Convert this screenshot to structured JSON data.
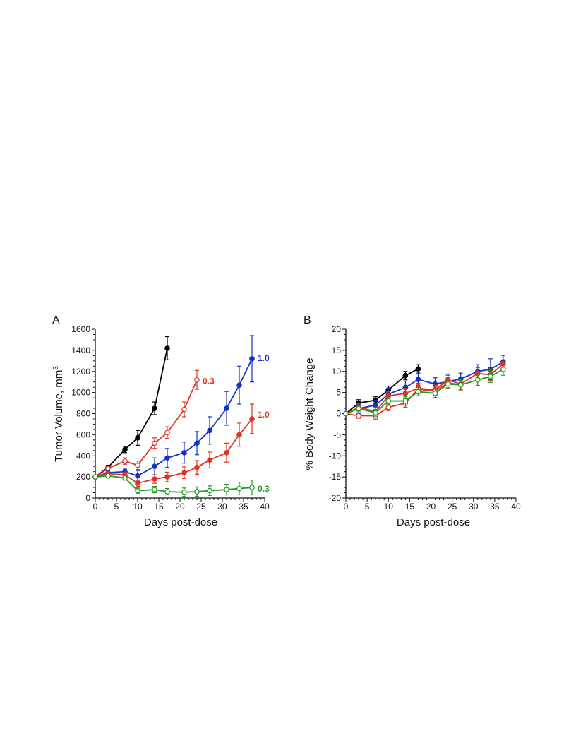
{
  "chart_data": [
    {
      "panel_label": "A",
      "type": "line",
      "xlabel": "Days post-dose",
      "ylabel": "Tumor Volume, mm",
      "ylabel_superscript": "3",
      "xlim": [
        0,
        40
      ],
      "ylim": [
        0,
        1600
      ],
      "xticks": [
        "0",
        "5",
        "10",
        "15",
        "20",
        "25",
        "30",
        "35",
        "40"
      ],
      "yticks": [
        "0",
        "200",
        "400",
        "600",
        "800",
        "1000",
        "1200",
        "1400",
        "1600"
      ],
      "grid": false,
      "series": [
        {
          "color": "#000000",
          "marker": "filled",
          "x": [
            0,
            3,
            7,
            10,
            14,
            17
          ],
          "y": [
            200,
            290,
            460,
            570,
            850,
            1420
          ],
          "err": [
            15,
            20,
            30,
            70,
            60,
            110
          ]
        },
        {
          "color": "#dd3322",
          "marker": "open",
          "label": "0.3",
          "x": [
            0,
            3,
            7,
            10,
            14,
            17,
            21,
            24
          ],
          "y": [
            200,
            280,
            350,
            310,
            520,
            620,
            840,
            1120
          ],
          "err": [
            15,
            20,
            30,
            40,
            50,
            55,
            70,
            90
          ]
        },
        {
          "color": "#1133cc",
          "marker": "filled",
          "label": "1.0",
          "x": [
            0,
            3,
            7,
            10,
            14,
            17,
            21,
            24,
            27,
            31,
            34,
            37
          ],
          "y": [
            200,
            240,
            250,
            210,
            300,
            380,
            430,
            520,
            640,
            850,
            1070,
            1320
          ],
          "err": [
            15,
            20,
            25,
            50,
            80,
            90,
            100,
            110,
            130,
            160,
            180,
            220
          ]
        },
        {
          "color": "#dd3322",
          "marker": "filled",
          "label": "1.0",
          "x": [
            0,
            3,
            7,
            10,
            14,
            17,
            21,
            24,
            27,
            31,
            34,
            37
          ],
          "y": [
            200,
            230,
            220,
            140,
            180,
            200,
            240,
            290,
            360,
            430,
            600,
            750
          ],
          "err": [
            15,
            20,
            25,
            30,
            40,
            45,
            55,
            65,
            75,
            90,
            110,
            140
          ]
        },
        {
          "color": "#229922",
          "marker": "open",
          "label": "0.3",
          "x": [
            0,
            3,
            7,
            10,
            14,
            17,
            21,
            24,
            27,
            31,
            34,
            37
          ],
          "y": [
            200,
            210,
            190,
            70,
            80,
            60,
            55,
            60,
            70,
            80,
            90,
            100
          ],
          "err": [
            15,
            20,
            20,
            25,
            30,
            30,
            40,
            45,
            45,
            50,
            60,
            70
          ]
        }
      ]
    },
    {
      "panel_label": "B",
      "type": "line",
      "xlabel": "Days post-dose",
      "ylabel": "% Body Weight Change",
      "xlim": [
        0,
        40
      ],
      "ylim": [
        -20,
        20
      ],
      "xticks": [
        "0",
        "5",
        "10",
        "15",
        "20",
        "25",
        "30",
        "35",
        "40"
      ],
      "yticks": [
        "-20",
        "-15",
        "-10",
        "-5",
        "0",
        "5",
        "10",
        "15",
        "20"
      ],
      "grid": false,
      "series": [
        {
          "color": "#000000",
          "marker": "filled",
          "x": [
            0,
            3,
            7,
            10,
            14,
            17
          ],
          "y": [
            0,
            2.5,
            3.2,
            5.6,
            9,
            10.6
          ],
          "err": [
            0.3,
            0.8,
            0.8,
            0.9,
            1,
            1
          ]
        },
        {
          "color": "#1133cc",
          "marker": "filled",
          "x": [
            0,
            3,
            7,
            10,
            14,
            17,
            21,
            24,
            27,
            31,
            34,
            37
          ],
          "y": [
            0,
            1.2,
            2,
            4.6,
            6.2,
            8.1,
            7,
            7.6,
            8.2,
            10,
            10.5,
            12.3
          ],
          "err": [
            0.3,
            1,
            1.2,
            1.4,
            1.5,
            1.5,
            1.5,
            1.5,
            1.4,
            1.6,
            2.5,
            1.5
          ]
        },
        {
          "color": "#dd3322",
          "marker": "filled",
          "x": [
            0,
            3,
            7,
            10,
            14,
            17,
            21,
            24,
            27,
            31,
            34,
            37
          ],
          "y": [
            0,
            1.5,
            0.5,
            4.2,
            4.8,
            6,
            5.6,
            8,
            7,
            9.5,
            9.2,
            11.8
          ],
          "err": [
            0.3,
            0.8,
            1,
            1,
            1.2,
            1.2,
            1.2,
            1.4,
            1.2,
            1.4,
            1.4,
            1.6
          ]
        },
        {
          "color": "#dd3322",
          "marker": "open",
          "x": [
            0,
            3,
            7,
            10,
            14,
            17,
            21,
            24,
            27
          ],
          "y": [
            0,
            -0.5,
            -0.5,
            1.5,
            2.5,
            5.8,
            5.3,
            7.3,
            6.8
          ],
          "err": [
            0.3,
            0.6,
            0.8,
            0.8,
            1,
            1,
            1,
            1.2,
            1.2
          ]
        },
        {
          "color": "#229922",
          "marker": "open",
          "x": [
            0,
            3,
            7,
            10,
            14,
            17,
            21,
            24,
            27,
            31,
            34,
            37
          ],
          "y": [
            0,
            1.2,
            0.2,
            3,
            3,
            5.2,
            4.8,
            7,
            6.8,
            8,
            8.8,
            10.5
          ],
          "err": [
            0.3,
            0.6,
            0.8,
            0.9,
            1,
            1,
            1,
            1.1,
            1.1,
            1.3,
            1.4,
            1.4
          ]
        }
      ]
    }
  ]
}
